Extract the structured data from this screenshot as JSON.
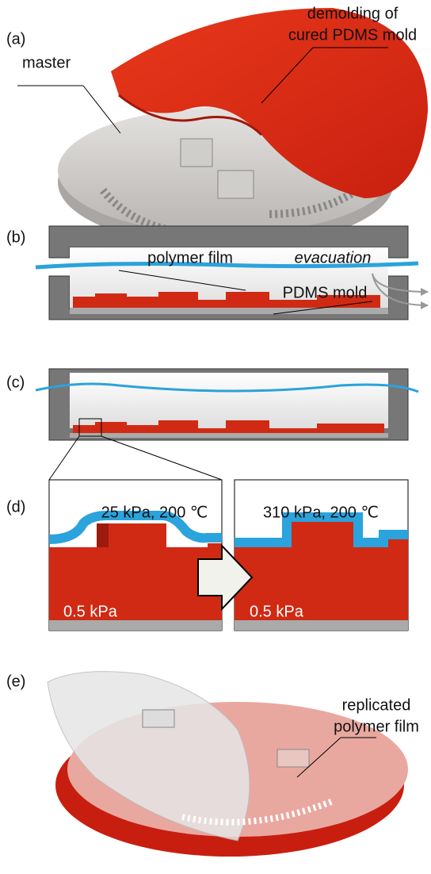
{
  "panel_a": {
    "label": "(a)",
    "master": "master",
    "demolding": [
      "demolding of",
      "cured PDMS mold"
    ]
  },
  "panel_b": {
    "label": "(b)",
    "film": "polymer film",
    "evacuation": "evacuation",
    "mold": "PDMS mold"
  },
  "panel_c": {
    "label": "(c)"
  },
  "panel_d": {
    "label": "(d)",
    "left": {
      "condition": "25 kPa, 200 ℃",
      "pressure": "0.5 kPa"
    },
    "right": {
      "condition": "310 kPa, 200 ℃",
      "pressure": "0.5 kPa"
    }
  },
  "panel_e": {
    "label": "(e)",
    "replicated": [
      "replicated",
      "polymer film"
    ]
  }
}
